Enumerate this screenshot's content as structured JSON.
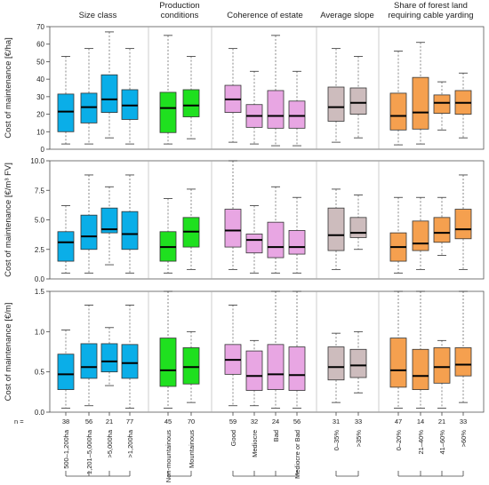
{
  "chart_data": {
    "type": "boxplot",
    "group_headers": [
      {
        "id": "size",
        "lines": [
          "Size class"
        ]
      },
      {
        "id": "prod",
        "lines": [
          "Production",
          "conditions"
        ]
      },
      {
        "id": "coh",
        "lines": [
          "Coherence of estate"
        ]
      },
      {
        "id": "slope",
        "lines": [
          "Average slope"
        ]
      },
      {
        "id": "cable",
        "lines": [
          "Share of forest land",
          "requiring cable yarding"
        ]
      }
    ],
    "categories": [
      {
        "label": "500–1,200ha",
        "n": "38",
        "group": 0,
        "color": "#0aaee8"
      },
      {
        "label": "1,201–5,000ha",
        "n": "56",
        "group": 0,
        "color": "#0aaee8"
      },
      {
        "label": ">5,000ha",
        "n": "21",
        "group": 0,
        "color": "#0aaee8"
      },
      {
        "label": ">1,200ha",
        "n": "77",
        "group": 0,
        "color": "#0aaee8"
      },
      {
        "label": "Non-mountainous",
        "n": "45",
        "group": 1,
        "color": "#1fe01f"
      },
      {
        "label": "Mountainous",
        "n": "70",
        "group": 1,
        "color": "#1fe01f"
      },
      {
        "label": "Good",
        "n": "59",
        "group": 2,
        "color": "#e8a6e3"
      },
      {
        "label": "Mediocre",
        "n": "32",
        "group": 2,
        "color": "#e8a6e3"
      },
      {
        "label": "Bad",
        "n": "24",
        "group": 2,
        "color": "#e8a6e3"
      },
      {
        "label": "Mediocre or Bad",
        "n": "56",
        "group": 2,
        "color": "#e8a6e3"
      },
      {
        "label": "0–35%",
        "n": "31",
        "group": 3,
        "color": "#cdbcbd"
      },
      {
        "label": ">35%",
        "n": "33",
        "group": 3,
        "color": "#cdbcbd"
      },
      {
        "label": "0–20%",
        "n": "47",
        "group": 4,
        "color": "#f5a04f"
      },
      {
        "label": "21–40%",
        "n": "14",
        "group": 4,
        "color": "#f5a04f"
      },
      {
        "label": "41–60%",
        "n": "21",
        "group": 4,
        "color": "#f5a04f"
      },
      {
        "label": ">60%",
        "n": "33",
        "group": 4,
        "color": "#f5a04f"
      }
    ],
    "n_label": "n =",
    "panels": [
      {
        "ylabel": "Cost of maintenance [€/ha]",
        "ylim": [
          0,
          70
        ],
        "ticks": [
          "0",
          "10",
          "20",
          "30",
          "40",
          "50",
          "60",
          "70"
        ],
        "tick_values": [
          0,
          10,
          20,
          30,
          40,
          50,
          60,
          70
        ],
        "boxes": [
          {
            "min": 3,
            "q1": 10,
            "median": 21.5,
            "q3": 31.5,
            "max": 53
          },
          {
            "min": 3,
            "q1": 15,
            "median": 24,
            "q3": 32,
            "max": 57.5
          },
          {
            "min": 6.5,
            "q1": 21,
            "median": 28.5,
            "q3": 42.5,
            "max": 67
          },
          {
            "min": 3,
            "q1": 17,
            "median": 25,
            "q3": 34,
            "max": 57.5
          },
          {
            "min": 3,
            "q1": 9.5,
            "median": 23.5,
            "q3": 32.5,
            "max": 65
          },
          {
            "min": 6,
            "q1": 18.5,
            "median": 25,
            "q3": 34,
            "max": 53
          },
          {
            "min": 4,
            "q1": 21,
            "median": 28.5,
            "q3": 36.5,
            "max": 57.5
          },
          {
            "min": 3,
            "q1": 12.5,
            "median": 19,
            "q3": 25.5,
            "max": 44.5
          },
          {
            "min": 2,
            "q1": 12,
            "median": 19,
            "q3": 33.5,
            "max": 65
          },
          {
            "min": 2,
            "q1": 12,
            "median": 19,
            "q3": 27.5,
            "max": 44.5
          },
          {
            "min": 4,
            "q1": 16,
            "median": 24,
            "q3": 35.5,
            "max": 57.5
          },
          {
            "min": 6.5,
            "q1": 20,
            "median": 26.5,
            "q3": 35,
            "max": 53
          },
          {
            "min": 2.5,
            "q1": 11,
            "median": 19,
            "q3": 32,
            "max": 56
          },
          {
            "min": 3,
            "q1": 11.5,
            "median": 21,
            "q3": 41,
            "max": 61
          },
          {
            "min": 11,
            "q1": 20.5,
            "median": 26.5,
            "q3": 31,
            "max": 38.5
          },
          {
            "min": 6.5,
            "q1": 20,
            "median": 26.5,
            "q3": 33.5,
            "max": 43.5
          }
        ]
      },
      {
        "ylabel": "Cost of maintenance [€/m³ FV]",
        "ylim": [
          0,
          10
        ],
        "ticks": [
          "0.0",
          "2.5",
          "5.0",
          "7.5",
          "10.0"
        ],
        "tick_values": [
          0,
          2.5,
          5,
          7.5,
          10
        ],
        "boxes": [
          {
            "min": 0.5,
            "q1": 1.5,
            "median": 3.1,
            "q3": 4.0,
            "max": 6.2
          },
          {
            "min": 0.5,
            "q1": 2.5,
            "median": 3.6,
            "q3": 5.4,
            "max": 8.8
          },
          {
            "min": 1.2,
            "q1": 3.9,
            "median": 4.2,
            "q3": 6.0,
            "max": 7.8
          },
          {
            "min": 0.5,
            "q1": 2.5,
            "median": 3.8,
            "q3": 5.7,
            "max": 8.8
          },
          {
            "min": 0.5,
            "q1": 1.5,
            "median": 2.7,
            "q3": 4.0,
            "max": 6.8
          },
          {
            "min": 0.8,
            "q1": 2.7,
            "median": 4.0,
            "q3": 5.2,
            "max": 7.6
          },
          {
            "min": 0.8,
            "q1": 2.7,
            "median": 4.1,
            "q3": 5.9,
            "max": 10.0
          },
          {
            "min": 0.5,
            "q1": 2.2,
            "median": 3.3,
            "q3": 3.8,
            "max": 6.2
          },
          {
            "min": 0.5,
            "q1": 1.8,
            "median": 2.7,
            "q3": 4.8,
            "max": 7.8
          },
          {
            "min": 0.5,
            "q1": 2.1,
            "median": 2.7,
            "q3": 4.1,
            "max": 6.9
          },
          {
            "min": 0.8,
            "q1": 2.4,
            "median": 3.7,
            "q3": 6.0,
            "max": 7.6
          },
          {
            "min": 2.5,
            "q1": 3.5,
            "median": 3.9,
            "q3": 5.2,
            "max": 7.1
          },
          {
            "min": 0.5,
            "q1": 1.5,
            "median": 2.7,
            "q3": 3.9,
            "max": 6.9
          },
          {
            "min": 0.8,
            "q1": 2.4,
            "median": 3.0,
            "q3": 4.9,
            "max": 6.9
          },
          {
            "min": 2.0,
            "q1": 3.1,
            "median": 3.9,
            "q3": 5.2,
            "max": 6.9
          },
          {
            "min": 0.8,
            "q1": 3.4,
            "median": 4.2,
            "q3": 5.9,
            "max": 8.8
          }
        ]
      },
      {
        "ylabel": "Cost of maintenance [€/m]",
        "ylim": [
          0,
          1.5
        ],
        "ticks": [
          "0.0",
          "0.5",
          "1.0",
          "1.5"
        ],
        "tick_values": [
          0,
          0.5,
          1.0,
          1.5
        ],
        "boxes": [
          {
            "min": 0.05,
            "q1": 0.28,
            "median": 0.47,
            "q3": 0.72,
            "max": 1.02
          },
          {
            "min": 0.08,
            "q1": 0.42,
            "median": 0.56,
            "q3": 0.85,
            "max": 1.33
          },
          {
            "min": 0.33,
            "q1": 0.5,
            "median": 0.63,
            "q3": 0.85,
            "max": 1.05
          },
          {
            "min": 0.05,
            "q1": 0.42,
            "median": 0.61,
            "q3": 0.84,
            "max": 1.33
          },
          {
            "min": 0.05,
            "q1": 0.32,
            "median": 0.52,
            "q3": 0.92,
            "max": 1.5
          },
          {
            "min": 0.12,
            "q1": 0.35,
            "median": 0.56,
            "q3": 0.8,
            "max": 1.0
          },
          {
            "min": 0.08,
            "q1": 0.47,
            "median": 0.65,
            "q3": 0.84,
            "max": 1.33
          },
          {
            "min": 0.08,
            "q1": 0.27,
            "median": 0.45,
            "q3": 0.76,
            "max": 0.89
          },
          {
            "min": 0.05,
            "q1": 0.28,
            "median": 0.47,
            "q3": 0.84,
            "max": 1.5
          },
          {
            "min": 0.05,
            "q1": 0.27,
            "median": 0.46,
            "q3": 0.81,
            "max": 1.5
          },
          {
            "min": 0.12,
            "q1": 0.4,
            "median": 0.56,
            "q3": 0.81,
            "max": 0.98
          },
          {
            "min": 0.24,
            "q1": 0.43,
            "median": 0.58,
            "q3": 0.78,
            "max": 1.0
          },
          {
            "min": 0.05,
            "q1": 0.31,
            "median": 0.52,
            "q3": 0.92,
            "max": 1.5
          },
          {
            "min": 0.05,
            "q1": 0.28,
            "median": 0.45,
            "q3": 0.78,
            "max": 1.5
          },
          {
            "min": 0.05,
            "q1": 0.36,
            "median": 0.56,
            "q3": 0.8,
            "max": 0.89
          },
          {
            "min": 0.12,
            "q1": 0.45,
            "median": 0.59,
            "q3": 0.8,
            "max": 1.5
          }
        ]
      }
    ]
  }
}
